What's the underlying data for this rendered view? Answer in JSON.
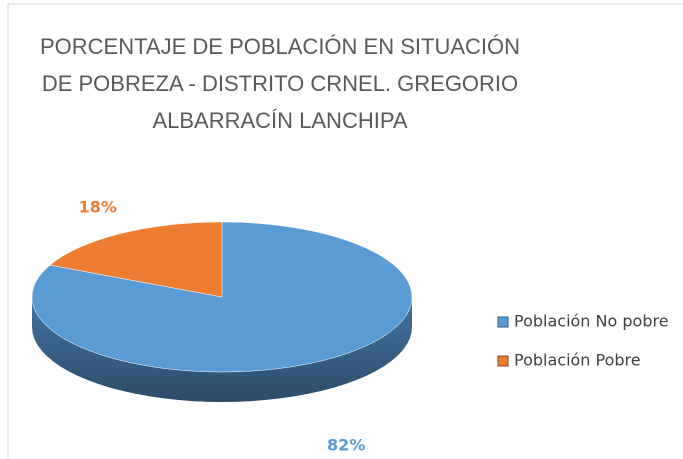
{
  "chart_data": {
    "type": "pie3d",
    "title": "PORCENTAJE DE POBLACIÓN EN SITUACIÓN DE POBREZA - DISTRITO CRNEL. GREGORIO ALBARRACÍN LANCHIPA",
    "categories": [
      "Población No pobre",
      "Población Pobre"
    ],
    "values": [
      82,
      18
    ],
    "value_labels": [
      "82%",
      "18%"
    ],
    "colors": [
      "#5b9bd5",
      "#ed7d31"
    ],
    "legend": "right"
  }
}
